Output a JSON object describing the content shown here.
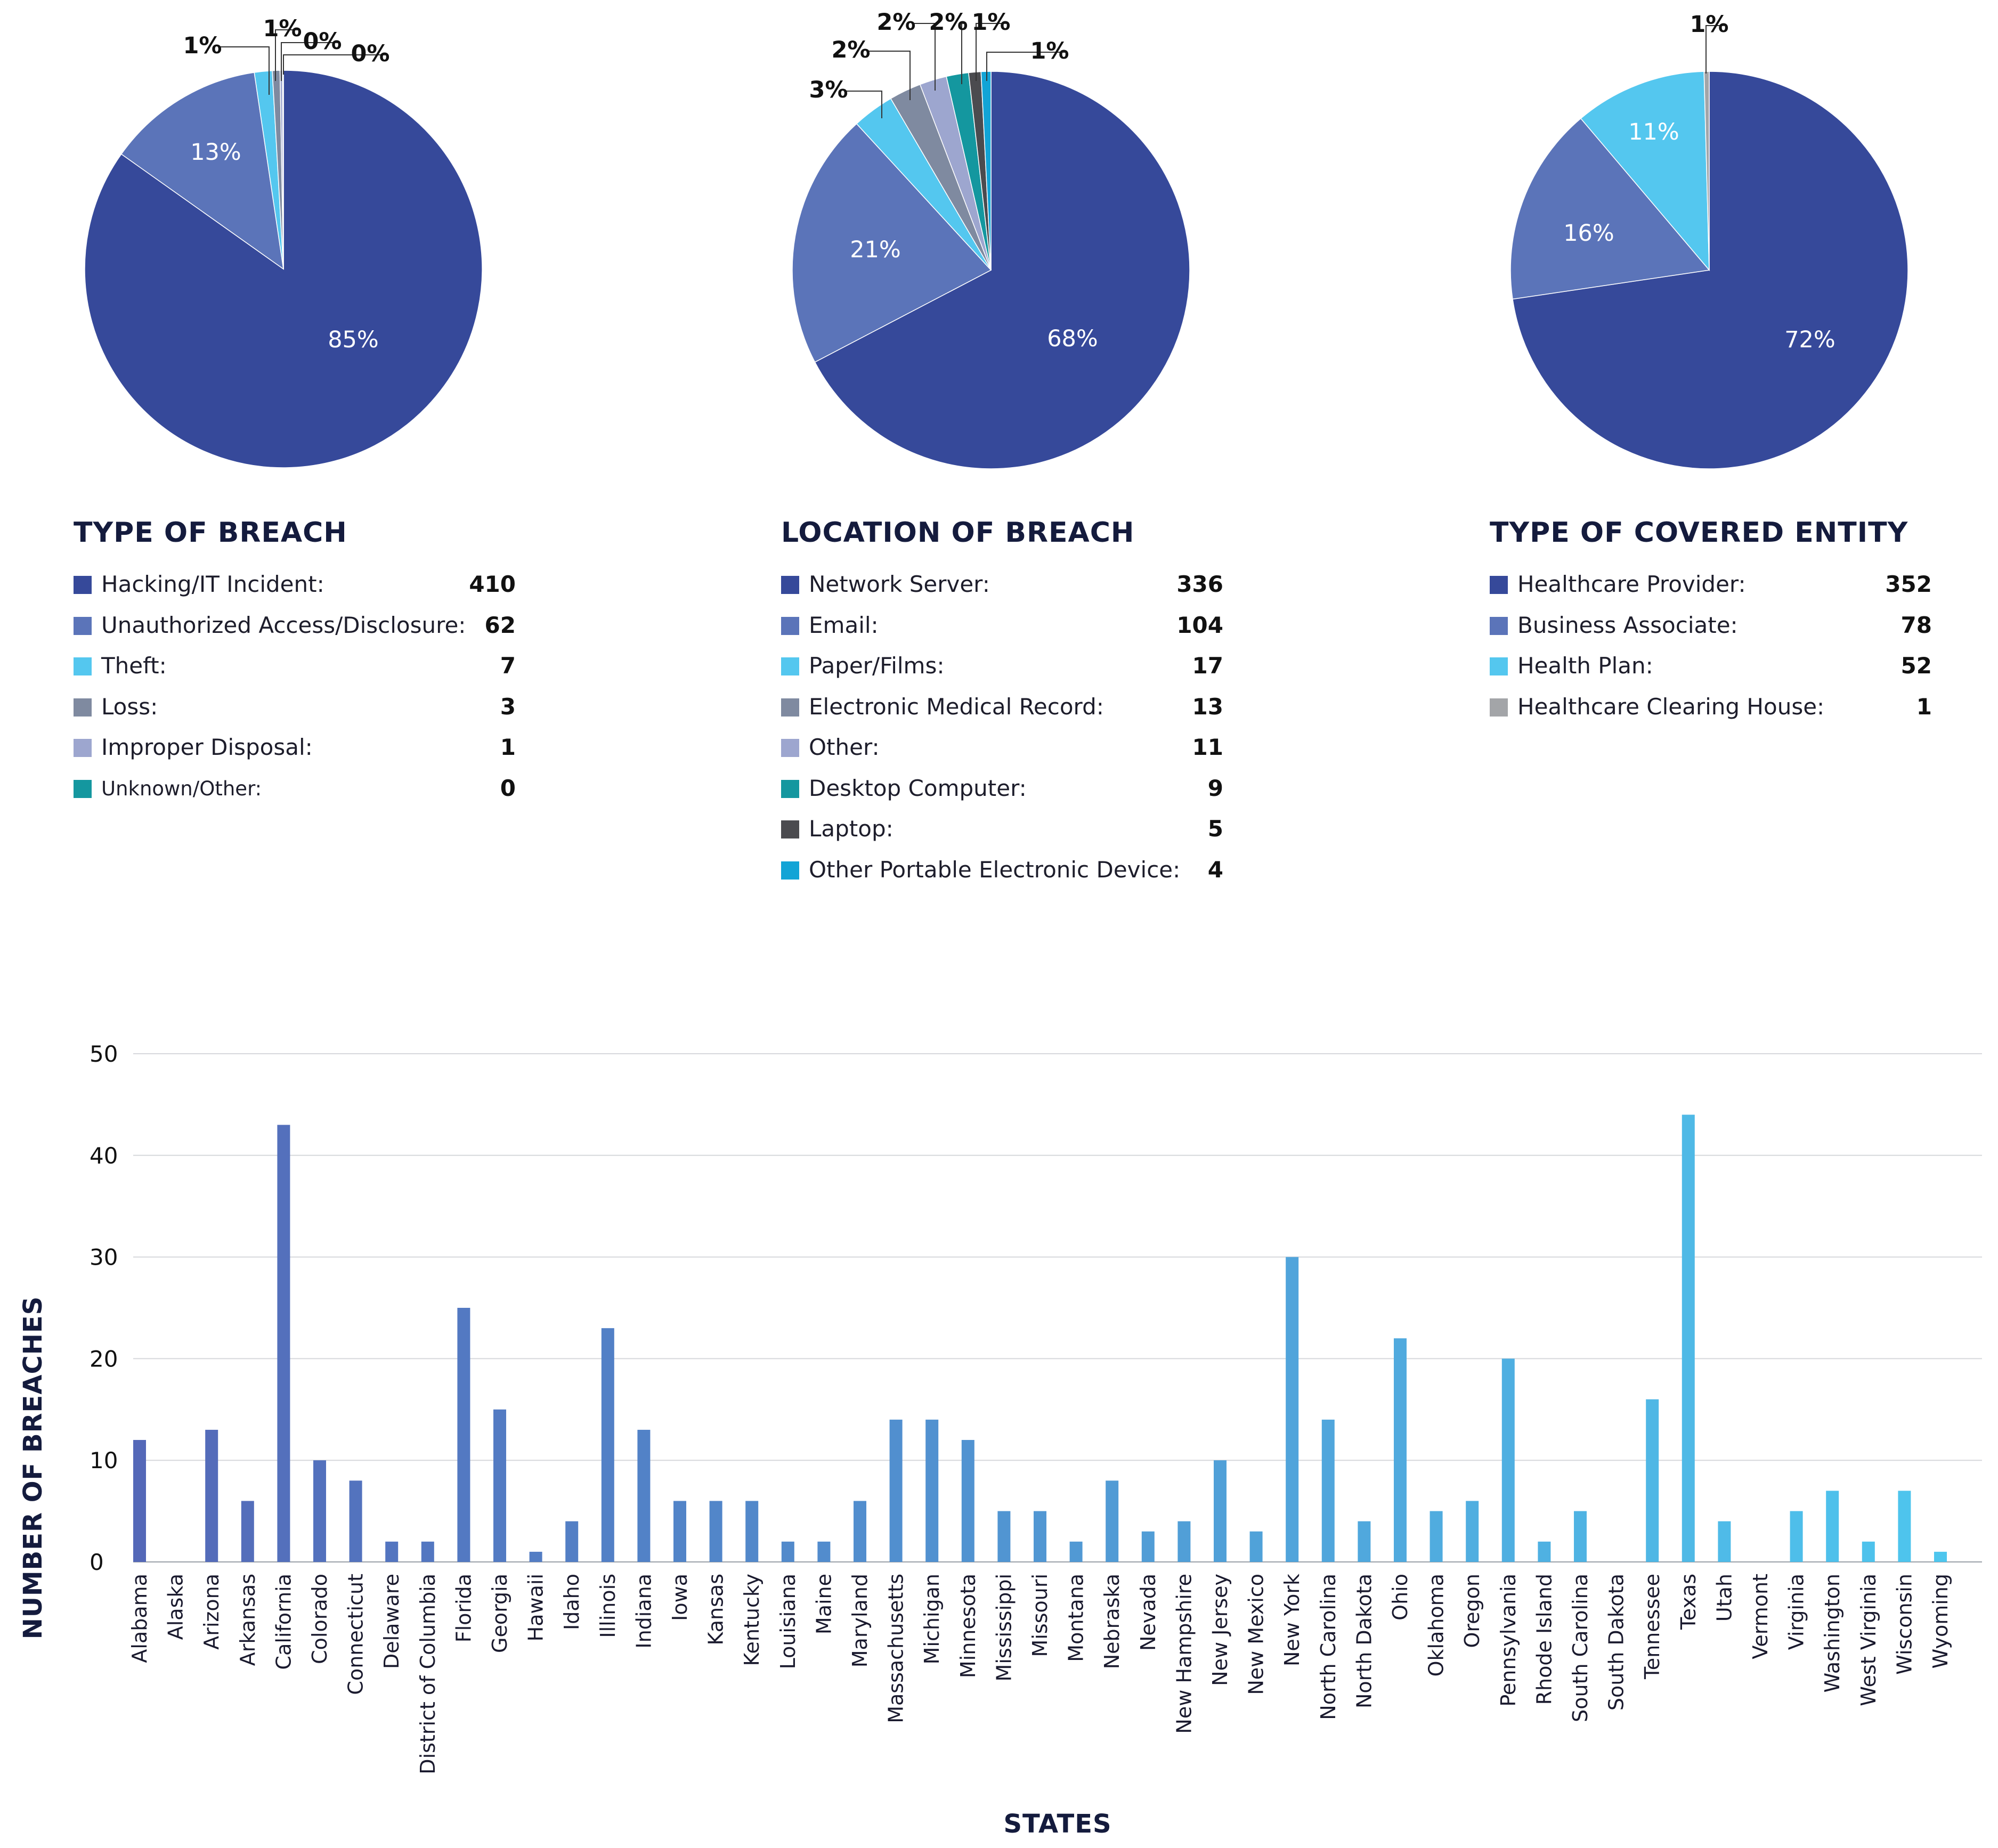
{
  "chart_data": [
    {
      "type": "pie",
      "title": "TYPE OF BREACH",
      "slices": [
        {
          "label": "Hacking/IT Incident:",
          "value": 410,
          "percent_label": "85%",
          "color": "#36499a"
        },
        {
          "label": "Unauthorized Access/Disclosure:",
          "value": 62,
          "percent_label": "13%",
          "color": "#5b74b9"
        },
        {
          "label": "Theft:",
          "value": 7,
          "percent_label": "1%",
          "color": "#54c7ef"
        },
        {
          "label": "Loss:",
          "value": 3,
          "percent_label": "1%",
          "color": "#7f8aa0"
        },
        {
          "label": "Improper Disposal:",
          "value": 1,
          "percent_label": "0%",
          "color": "#9da6cf"
        },
        {
          "label": "Unknown/Other:",
          "value": 0,
          "percent_label": "0%",
          "color": "#14979f"
        }
      ]
    },
    {
      "type": "pie",
      "title": "LOCATION OF BREACH",
      "slices": [
        {
          "label": "Network Server:",
          "value": 336,
          "percent_label": "68%",
          "color": "#36499a"
        },
        {
          "label": "Email:",
          "value": 104,
          "percent_label": "21%",
          "color": "#5b74b9"
        },
        {
          "label": "Paper/Films:",
          "value": 17,
          "percent_label": "3%",
          "color": "#54c7ef"
        },
        {
          "label": "Electronic Medical Record:",
          "value": 13,
          "percent_label": "2%",
          "color": "#7f8aa0"
        },
        {
          "label": "Other:",
          "value": 11,
          "percent_label": "2%",
          "color": "#9da6cf"
        },
        {
          "label": "Desktop Computer:",
          "value": 9,
          "percent_label": "2%",
          "color": "#14979f"
        },
        {
          "label": "Laptop:",
          "value": 5,
          "percent_label": "1%",
          "color": "#4b4b4f"
        },
        {
          "label": "Other Portable Electronic Device:",
          "value": 4,
          "percent_label": "1%",
          "color": "#12a4d6"
        }
      ]
    },
    {
      "type": "pie",
      "title": "TYPE OF COVERED ENTITY",
      "slices": [
        {
          "label": "Healthcare Provider:",
          "value": 352,
          "percent_label": "72%",
          "color": "#36499a"
        },
        {
          "label": "Business Associate:",
          "value": 78,
          "percent_label": "16%",
          "color": "#5b74b9"
        },
        {
          "label": "Health Plan:",
          "value": 52,
          "percent_label": "11%",
          "color": "#54c7ef"
        },
        {
          "label": "Healthcare Clearing House:",
          "value": 1,
          "percent_label": "1%",
          "color": "#a3a5a8"
        }
      ]
    },
    {
      "type": "bar",
      "title": "",
      "xlabel": "STATES",
      "ylabel": "NUMBER OF BREACHES",
      "ylim": [
        0,
        50
      ],
      "yticks": [
        0,
        10,
        20,
        30,
        40,
        50
      ],
      "grid": true,
      "color_start": "#5468b8",
      "color_end": "#4ec6ee",
      "categories": [
        "Alabama",
        "Alaska",
        "Arizona",
        "Arkansas",
        "California",
        "Colorado",
        "Connecticut",
        "Delaware",
        "District of Columbia",
        "Florida",
        "Georgia",
        "Hawaii",
        "Idaho",
        "Illinois",
        "Indiana",
        "Iowa",
        "Kansas",
        "Kentucky",
        "Louisiana",
        "Maine",
        "Maryland",
        "Massachusetts",
        "Michigan",
        "Minnesota",
        "Mississippi",
        "Missouri",
        "Montana",
        "Nebraska",
        "Nevada",
        "New Hampshire",
        "New Jersey",
        "New Mexico",
        "New York",
        "North Carolina",
        "North Dakota",
        "Ohio",
        "Oklahoma",
        "Oregon",
        "Pennsylvania",
        "Rhode Island",
        "South Carolina",
        "South Dakota",
        "Tennessee",
        "Texas",
        "Utah",
        "Vermont",
        "Virginia",
        "Washington",
        "West Virginia",
        "Wisconsin",
        "Wyoming"
      ],
      "values": [
        12,
        0,
        13,
        6,
        43,
        10,
        8,
        2,
        2,
        25,
        15,
        1,
        4,
        23,
        13,
        6,
        6,
        6,
        2,
        2,
        6,
        14,
        14,
        12,
        5,
        5,
        2,
        8,
        3,
        4,
        10,
        3,
        30,
        14,
        4,
        22,
        5,
        6,
        20,
        2,
        5,
        0,
        16,
        44,
        4,
        0,
        5,
        7,
        2,
        7,
        1
      ]
    }
  ]
}
